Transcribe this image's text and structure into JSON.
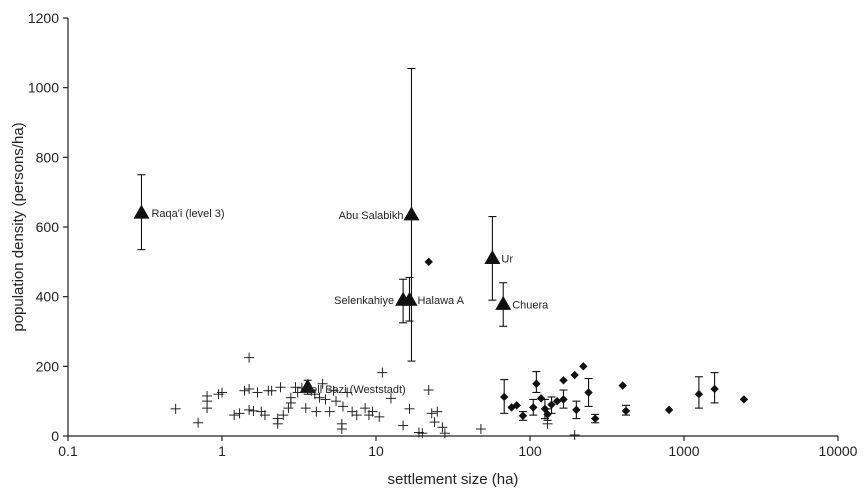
{
  "chart_data": {
    "type": "scatter",
    "xscale": "log",
    "xlim": [
      0.1,
      10000
    ],
    "ylim": [
      0,
      1200
    ],
    "xlabel": "settlement size (ha)",
    "ylabel": "population density (persons/ha)",
    "x_ticks": [
      {
        "value": 0.1,
        "label": "0.1"
      },
      {
        "value": 1,
        "label": "1"
      },
      {
        "value": 10,
        "label": "10"
      },
      {
        "value": 100,
        "label": "100"
      },
      {
        "value": 1000,
        "label": "1000"
      },
      {
        "value": 10000,
        "label": "10000"
      }
    ],
    "y_ticks": [
      {
        "value": 0,
        "label": "0"
      },
      {
        "value": 200,
        "label": "200"
      },
      {
        "value": 400,
        "label": "400"
      },
      {
        "value": 600,
        "label": "600"
      },
      {
        "value": 800,
        "label": "800"
      },
      {
        "value": 1000,
        "label": "1000"
      },
      {
        "value": 1200,
        "label": "1200"
      }
    ],
    "series": [
      {
        "marker": "triangle",
        "points": [
          {
            "x": 0.3,
            "y": 640,
            "low": 535,
            "high": 750,
            "label": "Raqa'i (level 3)"
          },
          {
            "x": 17,
            "y": 635,
            "low": 215,
            "high": 1055,
            "label": "Abu Salabikh"
          },
          {
            "x": 57,
            "y": 510,
            "low": 390,
            "high": 630,
            "label": "Ur"
          },
          {
            "x": 67,
            "y": 378,
            "low": 315,
            "high": 440,
            "label": "Chuera"
          },
          {
            "x": 15,
            "y": 390,
            "low": 325,
            "high": 450,
            "label": "Selenkahiye"
          },
          {
            "x": 16.5,
            "y": 390,
            "low": 330,
            "high": 455,
            "label": "Halawa A"
          },
          {
            "x": 3.6,
            "y": 140,
            "low": 120,
            "high": 160,
            "label": "Tell Bazi (Weststadt)"
          }
        ]
      },
      {
        "marker": "diamond",
        "points": [
          {
            "x": 22,
            "y": 500
          },
          {
            "x": 68,
            "y": 112,
            "low": 65,
            "high": 162
          },
          {
            "x": 76,
            "y": 82
          },
          {
            "x": 82,
            "y": 88
          },
          {
            "x": 90,
            "y": 58,
            "low": 45,
            "high": 70
          },
          {
            "x": 105,
            "y": 82,
            "low": 60,
            "high": 105
          },
          {
            "x": 110,
            "y": 150,
            "low": 125,
            "high": 185
          },
          {
            "x": 118,
            "y": 108
          },
          {
            "x": 125,
            "y": 78,
            "low": 50,
            "high": 105
          },
          {
            "x": 130,
            "y": 62,
            "low": 45,
            "high": 78
          },
          {
            "x": 138,
            "y": 90,
            "low": 65,
            "high": 112
          },
          {
            "x": 150,
            "y": 100
          },
          {
            "x": 165,
            "y": 105,
            "low": 80,
            "high": 132
          },
          {
            "x": 165,
            "y": 160
          },
          {
            "x": 195,
            "y": 175
          },
          {
            "x": 200,
            "y": 75,
            "low": 50,
            "high": 100
          },
          {
            "x": 222,
            "y": 200
          },
          {
            "x": 240,
            "y": 125,
            "low": 85,
            "high": 165
          },
          {
            "x": 265,
            "y": 50,
            "low": 38,
            "high": 62
          },
          {
            "x": 400,
            "y": 145
          },
          {
            "x": 420,
            "y": 72,
            "low": 60,
            "high": 88
          },
          {
            "x": 800,
            "y": 75
          },
          {
            "x": 1250,
            "y": 120,
            "low": 80,
            "high": 170
          },
          {
            "x": 1580,
            "y": 135,
            "low": 95,
            "high": 182
          },
          {
            "x": 2450,
            "y": 105
          }
        ]
      },
      {
        "marker": "plus",
        "points": [
          {
            "x": 0.5,
            "y": 78
          },
          {
            "x": 0.7,
            "y": 38
          },
          {
            "x": 0.8,
            "y": 100
          },
          {
            "x": 0.8,
            "y": 80
          },
          {
            "x": 0.8,
            "y": 115
          },
          {
            "x": 0.95,
            "y": 120
          },
          {
            "x": 1.0,
            "y": 125
          },
          {
            "x": 1.2,
            "y": 60
          },
          {
            "x": 1.3,
            "y": 65
          },
          {
            "x": 1.4,
            "y": 130
          },
          {
            "x": 1.5,
            "y": 75
          },
          {
            "x": 1.5,
            "y": 225
          },
          {
            "x": 1.5,
            "y": 135
          },
          {
            "x": 1.6,
            "y": 72
          },
          {
            "x": 1.7,
            "y": 125
          },
          {
            "x": 1.8,
            "y": 70
          },
          {
            "x": 1.9,
            "y": 60
          },
          {
            "x": 2.0,
            "y": 130
          },
          {
            "x": 2.1,
            "y": 130
          },
          {
            "x": 2.3,
            "y": 50
          },
          {
            "x": 2.3,
            "y": 35
          },
          {
            "x": 2.4,
            "y": 140
          },
          {
            "x": 2.5,
            "y": 60
          },
          {
            "x": 2.7,
            "y": 80
          },
          {
            "x": 2.8,
            "y": 95
          },
          {
            "x": 2.8,
            "y": 110
          },
          {
            "x": 3.0,
            "y": 140
          },
          {
            "x": 3.1,
            "y": 125
          },
          {
            "x": 3.3,
            "y": 138
          },
          {
            "x": 3.5,
            "y": 80
          },
          {
            "x": 3.8,
            "y": 130
          },
          {
            "x": 4.0,
            "y": 120
          },
          {
            "x": 4.1,
            "y": 70
          },
          {
            "x": 4.3,
            "y": 110
          },
          {
            "x": 4.5,
            "y": 150
          },
          {
            "x": 4.7,
            "y": 105
          },
          {
            "x": 5.0,
            "y": 70
          },
          {
            "x": 5.3,
            "y": 130
          },
          {
            "x": 5.5,
            "y": 100
          },
          {
            "x": 6.0,
            "y": 20
          },
          {
            "x": 6.0,
            "y": 35
          },
          {
            "x": 6.1,
            "y": 85
          },
          {
            "x": 6.5,
            "y": 125
          },
          {
            "x": 7.0,
            "y": 70
          },
          {
            "x": 7.5,
            "y": 60
          },
          {
            "x": 8.5,
            "y": 80
          },
          {
            "x": 9.0,
            "y": 60
          },
          {
            "x": 9.5,
            "y": 70
          },
          {
            "x": 10.5,
            "y": 55
          },
          {
            "x": 11.0,
            "y": 182
          },
          {
            "x": 12.5,
            "y": 108
          },
          {
            "x": 15.0,
            "y": 30
          },
          {
            "x": 16.5,
            "y": 78
          },
          {
            "x": 19.0,
            "y": 10
          },
          {
            "x": 20.0,
            "y": 8
          },
          {
            "x": 22.0,
            "y": 132
          },
          {
            "x": 23.0,
            "y": 65
          },
          {
            "x": 24.0,
            "y": 40
          },
          {
            "x": 25.0,
            "y": 70
          },
          {
            "x": 27.0,
            "y": 25
          },
          {
            "x": 28.0,
            "y": 8
          },
          {
            "x": 48.0,
            "y": 20
          },
          {
            "x": 130.0,
            "y": 35
          },
          {
            "x": 195.0,
            "y": 3
          }
        ]
      }
    ]
  }
}
